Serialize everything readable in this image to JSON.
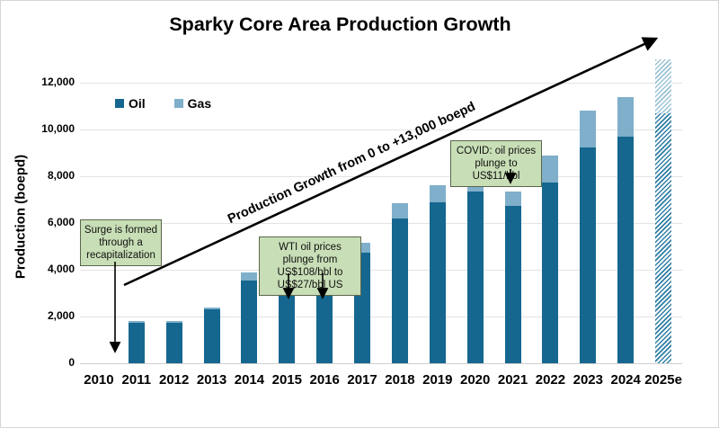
{
  "chart_data": {
    "type": "bar",
    "stacked": true,
    "title": "Sparky Core Area Production Growth",
    "ylabel": "Production (boepd)",
    "xlabel": "",
    "ylim": [
      0,
      13300
    ],
    "grid": true,
    "legend_position": "inside-top-left",
    "yticks": [
      {
        "value": 0,
        "label": "0"
      },
      {
        "value": 2000,
        "label": "2,000"
      },
      {
        "value": 4000,
        "label": "4,000"
      },
      {
        "value": 6000,
        "label": "6,000"
      },
      {
        "value": 8000,
        "label": "8,000"
      },
      {
        "value": 10000,
        "label": "10,000"
      },
      {
        "value": 12000,
        "label": "12,000"
      }
    ],
    "categories": [
      "2010",
      "2011",
      "2012",
      "2013",
      "2014",
      "2015",
      "2016",
      "2017",
      "2018",
      "2019",
      "2020",
      "2021",
      "2022",
      "2023",
      "2024",
      "2025e"
    ],
    "series": [
      {
        "name": "Oil",
        "color": "#15678F",
        "values": [
          0,
          1750,
          1750,
          2300,
          3550,
          3100,
          3050,
          4750,
          6200,
          6900,
          7350,
          6750,
          7750,
          9250,
          9700,
          10700
        ]
      },
      {
        "name": "Gas",
        "color": "#7FAFCA",
        "values": [
          0,
          50,
          50,
          100,
          350,
          300,
          300,
          400,
          650,
          700,
          850,
          600,
          1150,
          1550,
          1700,
          2300
        ]
      }
    ],
    "estimate_category_index": 15,
    "estimate_style": "diagonal-hatch",
    "trend_arrow_label": "Production Growth from 0 to +13,000 boepd",
    "annotations": [
      {
        "text": "Surge is formed through a recapitalization",
        "target": "2010"
      },
      {
        "text": "WTI oil prices plunge from US$108/bbl to US$27/bbl US",
        "targets": [
          "2015",
          "2016"
        ]
      },
      {
        "text": "COVID: oil prices plunge to US$11/bbl",
        "target": "2021"
      }
    ],
    "colors": {
      "oil": "#15678F",
      "gas": "#7FAFCA",
      "estimate_oil_hatch": "#2F7EA4",
      "estimate_gas_hatch": "#9CC3D6",
      "annotation_bg": "#C8DEB6",
      "annotation_border": "#5B664D",
      "gridline": "#E3E3E3"
    }
  }
}
